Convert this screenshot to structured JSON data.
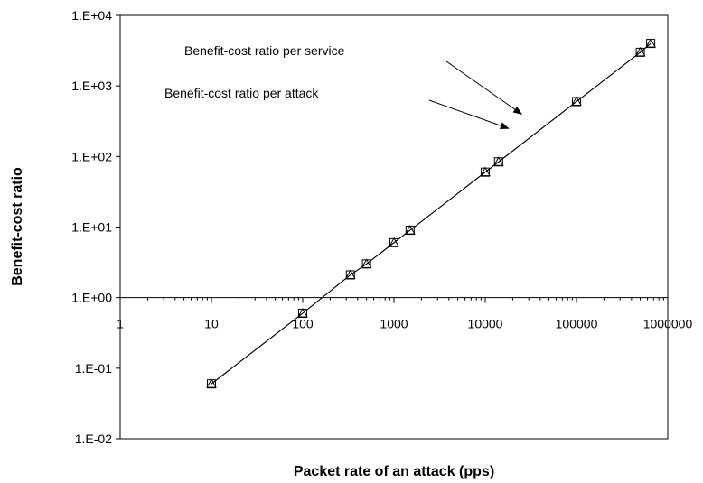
{
  "chart_data": {
    "type": "scatter",
    "xlabel": "Packet rate of an attack (pps)",
    "ylabel": "Benefit-cost ratio",
    "x_scale": "log",
    "y_scale": "log",
    "xlim": [
      1,
      1000000
    ],
    "ylim": [
      0.01,
      10000
    ],
    "x_tick_labels": [
      "1",
      "10",
      "100",
      "1000",
      "10000",
      "100000",
      "1000000"
    ],
    "y_tick_labels": [
      "1.E-02",
      "1.E-01",
      "1.E+00",
      "1.E+01",
      "1.E+02",
      "1.E+03",
      "1.E+04"
    ],
    "grid": false,
    "series": [
      {
        "marker": "triangle",
        "x": [
          10,
          100,
          333,
          500,
          1000,
          1500,
          10000,
          14000,
          100000,
          500000,
          650000
        ],
        "y": [
          0.06,
          0.6,
          2.1,
          3.0,
          6.0,
          9.0,
          60,
          84,
          600,
          3000,
          4000
        ]
      },
      {
        "marker": "square",
        "x": [
          10,
          100,
          333,
          500,
          1000,
          1500,
          10000,
          14000,
          100000,
          500000,
          650000
        ],
        "y": [
          0.06,
          0.6,
          2.1,
          3.0,
          6.0,
          9.0,
          60,
          84,
          600,
          3000,
          4000
        ]
      }
    ],
    "annotations": [
      {
        "text": "Benefit-cost ratio per service",
        "arrow_to": [
          25000,
          400
        ]
      },
      {
        "text": "Benefit-cost ratio per attack",
        "arrow_to": [
          18000,
          250
        ]
      }
    ]
  }
}
